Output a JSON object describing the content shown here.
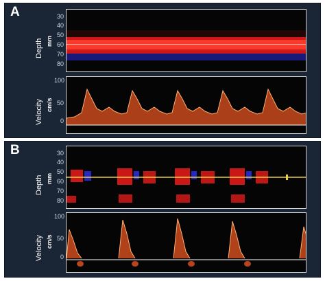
{
  "panels": [
    {
      "label": "A",
      "depth": {
        "axis_label": "Depth",
        "unit": "mm",
        "ticks": [
          "30",
          "40",
          "50",
          "60",
          "70",
          "80"
        ]
      },
      "velocity": {
        "axis_label": "Velocity",
        "unit": "cm/s",
        "ticks": [
          "100",
          "50",
          "0"
        ]
      }
    },
    {
      "label": "B",
      "depth": {
        "axis_label": "Depth",
        "unit": "mm",
        "ticks": [
          "30",
          "40",
          "50",
          "60",
          "70",
          "80"
        ]
      },
      "velocity": {
        "axis_label": "Velocity",
        "unit": "cm/s",
        "ticks": [
          "100",
          "50",
          "0"
        ]
      }
    }
  ],
  "colors": {
    "panel_background": "#1a2635",
    "plot_background": "#050505",
    "plot_border": "#d8d8d8",
    "flow_toward": "#e01a1a",
    "flow_away": "#2a2ad8",
    "spectrum": "#d95020",
    "gate_line": "#e8d040",
    "baseline": "#ffffff"
  }
}
